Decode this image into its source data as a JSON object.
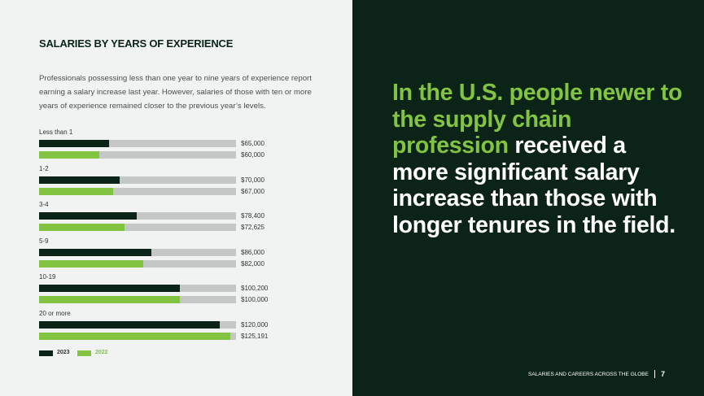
{
  "left_panel": {
    "title": "SALARIES BY YEARS OF EXPERIENCE",
    "intro": "Professionals possessing less than one year to nine years of experience report earning a salary increase last year. However, salaries of those with ten or more years of experience remained closer to the previous year’s levels."
  },
  "colors": {
    "dark_green": "#0c2418",
    "light_green": "#82c341",
    "track_gray": "#c3c7c6"
  },
  "chart_data": {
    "type": "bar",
    "orientation": "horizontal",
    "categories": [
      "Less than 1",
      "1-2",
      "3-4",
      "5-9",
      "10-19",
      "20 or more"
    ],
    "series": [
      {
        "name": "2023",
        "values": [
          65000,
          70000,
          78400,
          86000,
          100200,
          120000
        ],
        "labels": [
          "$65,000",
          "$70,000",
          "$78,400",
          "$86,000",
          "$100,200",
          "$120,000"
        ]
      },
      {
        "name": "2022",
        "values": [
          60000,
          67000,
          72625,
          82000,
          100000,
          125191
        ],
        "labels": [
          "$60,000",
          "$67,000",
          "$72,625",
          "$82,000",
          "$100,000",
          "$125,191"
        ]
      }
    ],
    "xlim": [
      30000,
      128000
    ],
    "legend_position": "bottom-left"
  },
  "right_panel": {
    "headline_accent": "In the U.S. people newer to the supply chain profession",
    "headline_rest": "received a more significant salary increase than those with longer tenures in the field."
  },
  "footer": {
    "section": "SALARIES AND CAREERS ACROSS THE GLOBE",
    "page_number": "7"
  }
}
